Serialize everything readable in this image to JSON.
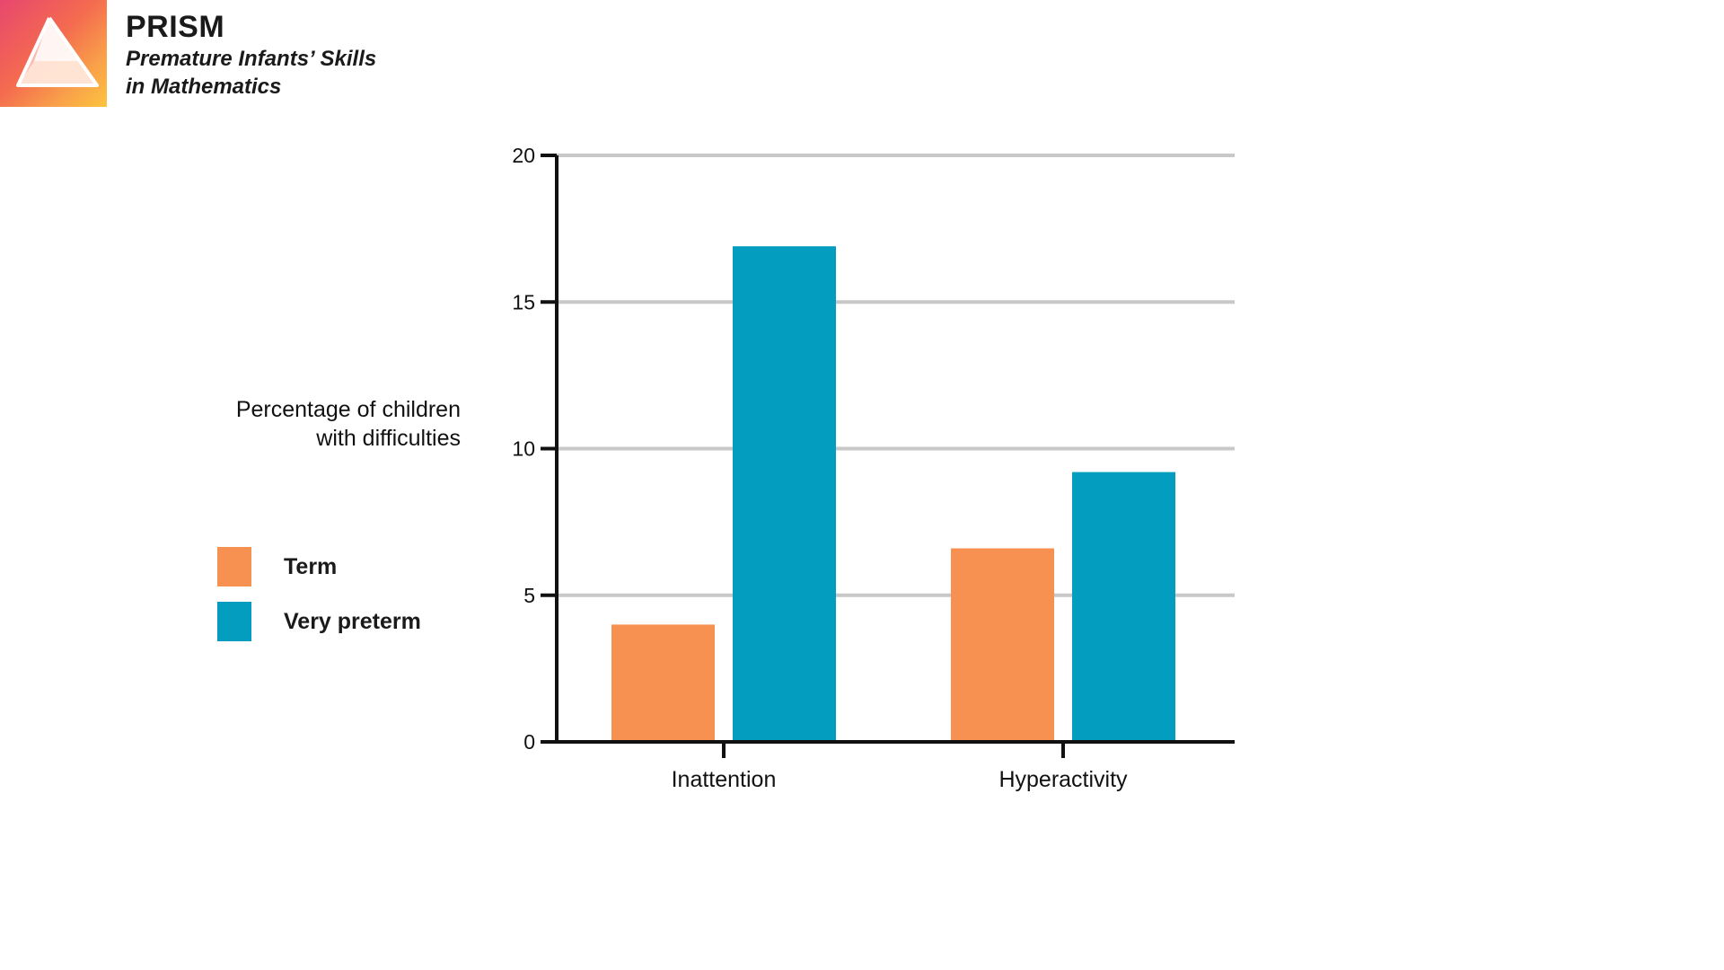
{
  "brand": {
    "name": "PRISM",
    "subtitle_line1": "Premature Infants’ Skills",
    "subtitle_line2": "in Mathematics"
  },
  "colors": {
    "term": "#f79152",
    "very_preterm": "#029dbf",
    "grid": "#c8c8c8",
    "axis": "#111111"
  },
  "chart_data": {
    "type": "bar",
    "ylabel_line1": "Percentage of children",
    "ylabel_line2": "with difficulties",
    "categories": [
      "Inattention",
      "Hyperactivity"
    ],
    "series": [
      {
        "name": "Term",
        "values": [
          4.0,
          6.6
        ]
      },
      {
        "name": "Very preterm",
        "values": [
          16.9,
          9.2
        ]
      }
    ],
    "ylim": [
      0,
      20
    ],
    "yticks": [
      0,
      5,
      10,
      15,
      20
    ],
    "grid": true,
    "legend_position": "left"
  }
}
